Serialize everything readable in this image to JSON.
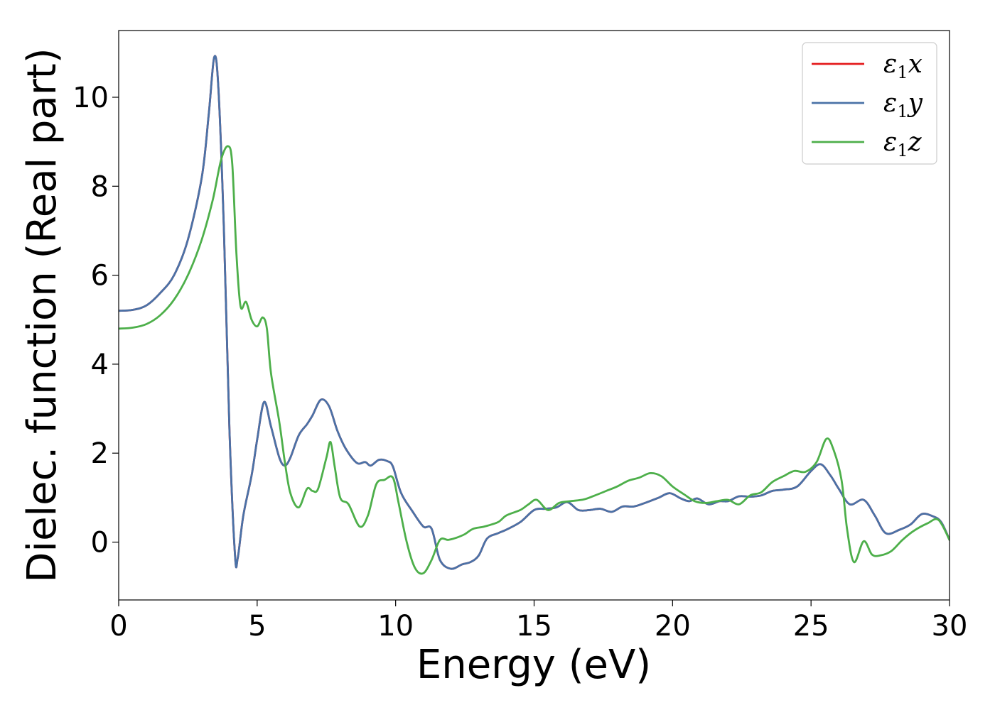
{
  "chart_data": {
    "type": "line",
    "title": "",
    "xlabel": "Energy (eV)",
    "ylabel": "Dielec. function (Real part)",
    "xlim": [
      0,
      30
    ],
    "ylim": [
      -1.3,
      11.5
    ],
    "xticks": [
      0,
      5,
      10,
      15,
      20,
      25,
      30
    ],
    "yticks": [
      0,
      2,
      4,
      6,
      8,
      10
    ],
    "grid": false,
    "legend_position": "top-right",
    "series": [
      {
        "name": "ε1x",
        "base": "ε",
        "sub": "1",
        "var": "x",
        "color": "#e41a1c",
        "points": [
          [
            0,
            5.2
          ],
          [
            0.5,
            5.22
          ],
          [
            1,
            5.32
          ],
          [
            1.5,
            5.6
          ],
          [
            2,
            6.0
          ],
          [
            2.5,
            6.8
          ],
          [
            3,
            8.2
          ],
          [
            3.25,
            9.6
          ],
          [
            3.45,
            10.9
          ],
          [
            3.6,
            10.2
          ],
          [
            3.8,
            7.0
          ],
          [
            4.0,
            2.5
          ],
          [
            4.2,
            -0.3
          ],
          [
            4.3,
            -0.35
          ],
          [
            4.5,
            0.6
          ],
          [
            4.8,
            1.5
          ],
          [
            5.0,
            2.3
          ],
          [
            5.25,
            3.15
          ],
          [
            5.5,
            2.6
          ],
          [
            5.8,
            1.9
          ],
          [
            6.0,
            1.72
          ],
          [
            6.2,
            1.9
          ],
          [
            6.5,
            2.4
          ],
          [
            6.8,
            2.65
          ],
          [
            7.0,
            2.85
          ],
          [
            7.3,
            3.2
          ],
          [
            7.6,
            3.05
          ],
          [
            7.9,
            2.5
          ],
          [
            8.2,
            2.1
          ],
          [
            8.6,
            1.78
          ],
          [
            8.9,
            1.8
          ],
          [
            9.1,
            1.72
          ],
          [
            9.4,
            1.85
          ],
          [
            9.7,
            1.82
          ],
          [
            9.9,
            1.7
          ],
          [
            10.2,
            1.1
          ],
          [
            10.6,
            0.7
          ],
          [
            11.0,
            0.35
          ],
          [
            11.3,
            0.3
          ],
          [
            11.6,
            -0.4
          ],
          [
            12.0,
            -0.6
          ],
          [
            12.4,
            -0.5
          ],
          [
            12.7,
            -0.45
          ],
          [
            13.0,
            -0.3
          ],
          [
            13.3,
            0.08
          ],
          [
            13.7,
            0.2
          ],
          [
            14.0,
            0.28
          ],
          [
            14.5,
            0.45
          ],
          [
            15.0,
            0.72
          ],
          [
            15.4,
            0.75
          ],
          [
            15.8,
            0.78
          ],
          [
            16.2,
            0.9
          ],
          [
            16.6,
            0.72
          ],
          [
            17.0,
            0.72
          ],
          [
            17.4,
            0.75
          ],
          [
            17.8,
            0.68
          ],
          [
            18.2,
            0.8
          ],
          [
            18.6,
            0.8
          ],
          [
            19.0,
            0.88
          ],
          [
            19.5,
            1.0
          ],
          [
            19.9,
            1.1
          ],
          [
            20.3,
            0.98
          ],
          [
            20.6,
            0.92
          ],
          [
            20.9,
            0.98
          ],
          [
            21.3,
            0.85
          ],
          [
            21.7,
            0.92
          ],
          [
            22.0,
            0.92
          ],
          [
            22.4,
            1.03
          ],
          [
            22.8,
            1.02
          ],
          [
            23.2,
            1.05
          ],
          [
            23.6,
            1.15
          ],
          [
            24.0,
            1.18
          ],
          [
            24.5,
            1.25
          ],
          [
            25.0,
            1.6
          ],
          [
            25.35,
            1.75
          ],
          [
            25.7,
            1.5
          ],
          [
            26.0,
            1.2
          ],
          [
            26.4,
            0.85
          ],
          [
            26.9,
            0.95
          ],
          [
            27.3,
            0.6
          ],
          [
            27.7,
            0.2
          ],
          [
            28.2,
            0.28
          ],
          [
            28.6,
            0.4
          ],
          [
            29.0,
            0.63
          ],
          [
            29.4,
            0.58
          ],
          [
            29.7,
            0.45
          ],
          [
            30.0,
            0.05
          ]
        ]
      },
      {
        "name": "ε1y",
        "base": "ε",
        "sub": "1",
        "var": "y",
        "color": "#4a72a7",
        "points": [
          [
            0,
            5.2
          ],
          [
            0.5,
            5.22
          ],
          [
            1,
            5.32
          ],
          [
            1.5,
            5.6
          ],
          [
            2,
            6.0
          ],
          [
            2.5,
            6.8
          ],
          [
            3,
            8.2
          ],
          [
            3.25,
            9.6
          ],
          [
            3.45,
            10.9
          ],
          [
            3.6,
            10.2
          ],
          [
            3.8,
            7.0
          ],
          [
            4.0,
            2.5
          ],
          [
            4.2,
            -0.3
          ],
          [
            4.3,
            -0.35
          ],
          [
            4.5,
            0.6
          ],
          [
            4.8,
            1.5
          ],
          [
            5.0,
            2.3
          ],
          [
            5.25,
            3.15
          ],
          [
            5.5,
            2.6
          ],
          [
            5.8,
            1.9
          ],
          [
            6.0,
            1.72
          ],
          [
            6.2,
            1.9
          ],
          [
            6.5,
            2.4
          ],
          [
            6.8,
            2.65
          ],
          [
            7.0,
            2.85
          ],
          [
            7.3,
            3.2
          ],
          [
            7.6,
            3.05
          ],
          [
            7.9,
            2.5
          ],
          [
            8.2,
            2.1
          ],
          [
            8.6,
            1.78
          ],
          [
            8.9,
            1.8
          ],
          [
            9.1,
            1.72
          ],
          [
            9.4,
            1.85
          ],
          [
            9.7,
            1.82
          ],
          [
            9.9,
            1.7
          ],
          [
            10.2,
            1.1
          ],
          [
            10.6,
            0.7
          ],
          [
            11.0,
            0.35
          ],
          [
            11.3,
            0.3
          ],
          [
            11.6,
            -0.4
          ],
          [
            12.0,
            -0.6
          ],
          [
            12.4,
            -0.5
          ],
          [
            12.7,
            -0.45
          ],
          [
            13.0,
            -0.3
          ],
          [
            13.3,
            0.08
          ],
          [
            13.7,
            0.2
          ],
          [
            14.0,
            0.28
          ],
          [
            14.5,
            0.45
          ],
          [
            15.0,
            0.72
          ],
          [
            15.4,
            0.75
          ],
          [
            15.8,
            0.78
          ],
          [
            16.2,
            0.9
          ],
          [
            16.6,
            0.72
          ],
          [
            17.0,
            0.72
          ],
          [
            17.4,
            0.75
          ],
          [
            17.8,
            0.68
          ],
          [
            18.2,
            0.8
          ],
          [
            18.6,
            0.8
          ],
          [
            19.0,
            0.88
          ],
          [
            19.5,
            1.0
          ],
          [
            19.9,
            1.1
          ],
          [
            20.3,
            0.98
          ],
          [
            20.6,
            0.92
          ],
          [
            20.9,
            0.98
          ],
          [
            21.3,
            0.85
          ],
          [
            21.7,
            0.92
          ],
          [
            22.0,
            0.92
          ],
          [
            22.4,
            1.03
          ],
          [
            22.8,
            1.02
          ],
          [
            23.2,
            1.05
          ],
          [
            23.6,
            1.15
          ],
          [
            24.0,
            1.18
          ],
          [
            24.5,
            1.25
          ],
          [
            25.0,
            1.6
          ],
          [
            25.35,
            1.75
          ],
          [
            25.7,
            1.5
          ],
          [
            26.0,
            1.2
          ],
          [
            26.4,
            0.85
          ],
          [
            26.9,
            0.95
          ],
          [
            27.3,
            0.6
          ],
          [
            27.7,
            0.2
          ],
          [
            28.2,
            0.28
          ],
          [
            28.6,
            0.4
          ],
          [
            29.0,
            0.63
          ],
          [
            29.4,
            0.58
          ],
          [
            29.7,
            0.45
          ],
          [
            30.0,
            0.05
          ]
        ]
      },
      {
        "name": "ε1z",
        "base": "ε",
        "sub": "1",
        "var": "z",
        "color": "#4daf4a",
        "points": [
          [
            0,
            4.8
          ],
          [
            0.5,
            4.82
          ],
          [
            1,
            4.9
          ],
          [
            1.5,
            5.1
          ],
          [
            2,
            5.45
          ],
          [
            2.5,
            6.0
          ],
          [
            3,
            6.8
          ],
          [
            3.4,
            7.7
          ],
          [
            3.7,
            8.6
          ],
          [
            3.95,
            8.9
          ],
          [
            4.1,
            8.5
          ],
          [
            4.25,
            6.5
          ],
          [
            4.4,
            5.3
          ],
          [
            4.6,
            5.4
          ],
          [
            4.8,
            5.0
          ],
          [
            5.0,
            4.85
          ],
          [
            5.2,
            5.05
          ],
          [
            5.35,
            4.8
          ],
          [
            5.5,
            3.8
          ],
          [
            5.8,
            2.7
          ],
          [
            6.0,
            1.8
          ],
          [
            6.2,
            1.1
          ],
          [
            6.5,
            0.78
          ],
          [
            6.8,
            1.2
          ],
          [
            7.0,
            1.15
          ],
          [
            7.2,
            1.2
          ],
          [
            7.5,
            1.9
          ],
          [
            7.65,
            2.25
          ],
          [
            7.8,
            1.7
          ],
          [
            8.0,
            1.0
          ],
          [
            8.3,
            0.85
          ],
          [
            8.7,
            0.35
          ],
          [
            9.0,
            0.6
          ],
          [
            9.3,
            1.3
          ],
          [
            9.6,
            1.4
          ],
          [
            9.9,
            1.45
          ],
          [
            10.1,
            0.9
          ],
          [
            10.4,
            0.0
          ],
          [
            10.7,
            -0.58
          ],
          [
            11.0,
            -0.7
          ],
          [
            11.3,
            -0.4
          ],
          [
            11.6,
            0.05
          ],
          [
            11.9,
            0.05
          ],
          [
            12.2,
            0.1
          ],
          [
            12.5,
            0.18
          ],
          [
            12.8,
            0.3
          ],
          [
            13.2,
            0.35
          ],
          [
            13.7,
            0.45
          ],
          [
            14.0,
            0.6
          ],
          [
            14.5,
            0.72
          ],
          [
            14.8,
            0.85
          ],
          [
            15.1,
            0.95
          ],
          [
            15.5,
            0.72
          ],
          [
            15.9,
            0.88
          ],
          [
            16.3,
            0.92
          ],
          [
            16.8,
            0.96
          ],
          [
            17.2,
            1.05
          ],
          [
            17.6,
            1.15
          ],
          [
            18.0,
            1.25
          ],
          [
            18.4,
            1.38
          ],
          [
            18.8,
            1.45
          ],
          [
            19.2,
            1.55
          ],
          [
            19.6,
            1.48
          ],
          [
            20.0,
            1.25
          ],
          [
            20.4,
            1.08
          ],
          [
            20.8,
            0.92
          ],
          [
            21.2,
            0.88
          ],
          [
            21.6,
            0.92
          ],
          [
            22.0,
            0.95
          ],
          [
            22.4,
            0.85
          ],
          [
            22.8,
            1.05
          ],
          [
            23.2,
            1.12
          ],
          [
            23.6,
            1.35
          ],
          [
            24.0,
            1.48
          ],
          [
            24.4,
            1.6
          ],
          [
            24.8,
            1.58
          ],
          [
            25.2,
            1.8
          ],
          [
            25.55,
            2.32
          ],
          [
            25.8,
            2.1
          ],
          [
            26.1,
            1.4
          ],
          [
            26.3,
            0.3
          ],
          [
            26.55,
            -0.45
          ],
          [
            26.9,
            0.02
          ],
          [
            27.2,
            -0.28
          ],
          [
            27.5,
            -0.3
          ],
          [
            27.9,
            -0.2
          ],
          [
            28.3,
            0.05
          ],
          [
            28.7,
            0.25
          ],
          [
            29.2,
            0.42
          ],
          [
            29.6,
            0.5
          ],
          [
            30.0,
            0.05
          ]
        ]
      }
    ]
  }
}
